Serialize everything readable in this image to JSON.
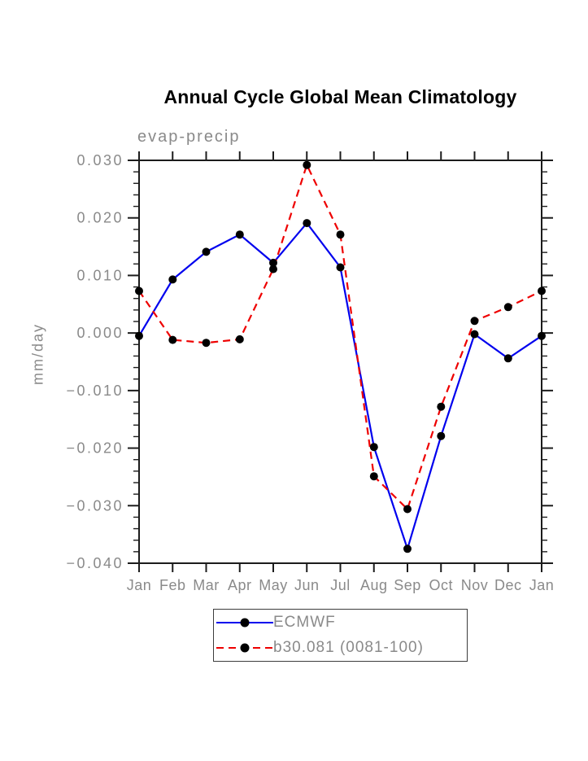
{
  "chart_data": {
    "type": "line",
    "title": "Annual Cycle Global Mean Climatology",
    "subtitle": "evap-precip",
    "ylabel": "mm/day",
    "xlabel": "",
    "categories": [
      "Jan",
      "Feb",
      "Mar",
      "Apr",
      "May",
      "Jun",
      "Jul",
      "Aug",
      "Sep",
      "Oct",
      "Nov",
      "Dec",
      "Jan"
    ],
    "series": [
      {
        "name": "ECMWF",
        "color": "#0000ee",
        "dash": "solid",
        "marker": "black-dot",
        "values": [
          -0.0005,
          0.0093,
          0.0141,
          0.0171,
          0.0122,
          0.0191,
          0.0114,
          -0.0198,
          -0.0375,
          -0.0179,
          -0.0002,
          -0.0044,
          -0.0005
        ]
      },
      {
        "name": "b30.081 (0081-100)",
        "color": "#ee0000",
        "dash": "dashed",
        "marker": "black-dot",
        "values": [
          0.0073,
          -0.0012,
          -0.0017,
          -0.0011,
          0.0111,
          0.0292,
          0.0171,
          -0.0249,
          -0.0306,
          -0.0128,
          0.0021,
          0.0045,
          0.0073
        ]
      }
    ],
    "ylim": [
      -0.04,
      0.03
    ],
    "ytick_values": [
      0.03,
      0.02,
      0.01,
      0.0,
      -0.01,
      -0.02,
      -0.03,
      -0.04
    ],
    "ytick_labels": [
      "0.030",
      "0.020",
      "0.010",
      "0.000",
      "−0.010",
      "−0.020",
      "−0.030",
      "−0.040"
    ],
    "ytick_minor_step": 0.002,
    "grid": false,
    "legend_position": "bottom-center",
    "colors": {
      "axis": "#1c1c1c",
      "labels": "#8a8a8a",
      "marker": "#000000",
      "background": "#ffffff",
      "title": "#000000"
    }
  }
}
